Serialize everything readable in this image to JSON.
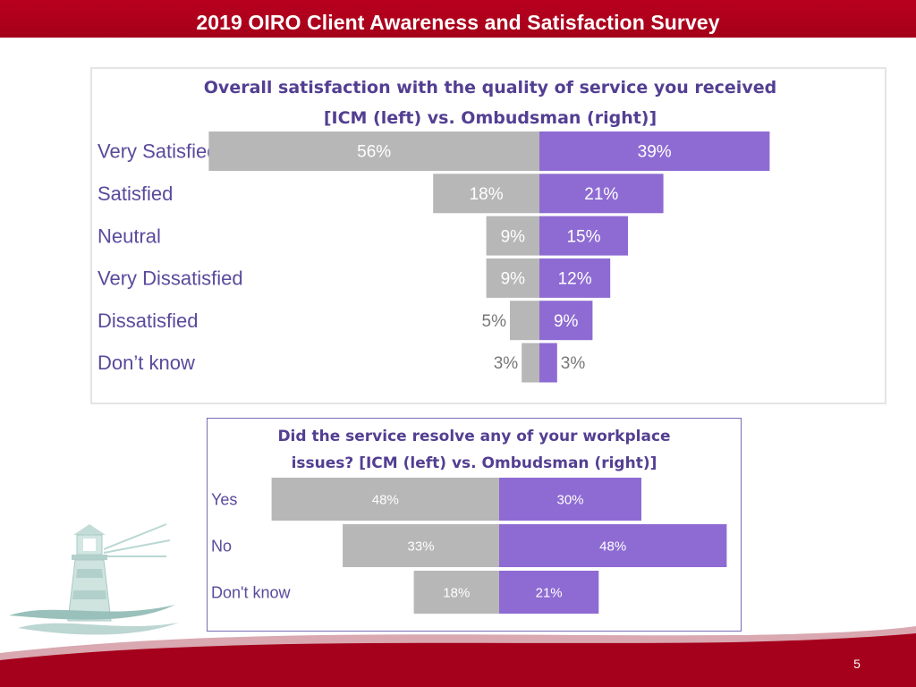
{
  "header": {
    "title": "2019 OIRO Client Awareness and Satisfaction Survey"
  },
  "footer": {
    "page_number": "5"
  },
  "colors": {
    "icm": "#b7b7b7",
    "ombudsman": "#8e6bd3",
    "title_bar": "#a50019",
    "chart_title": "#533f92"
  },
  "chart_data": [
    {
      "type": "bar",
      "orientation": "horizontal-diverging",
      "title_lines": [
        "Overall satisfaction with the quality of service you received",
        "[ICM (left) vs. Ombudsman (right)]"
      ],
      "categories": [
        "Very Satisfied",
        "Satisfied",
        "Neutral",
        "Very Dissatisfied",
        "Dissatisfied",
        "Don’t know"
      ],
      "series": [
        {
          "name": "ICM",
          "side": "left",
          "values": [
            56,
            18,
            9,
            9,
            5,
            3
          ],
          "labels": [
            "56%",
            "18%",
            "9%",
            "9%",
            "5%",
            "3%"
          ]
        },
        {
          "name": "Ombudsman",
          "side": "right",
          "values": [
            39,
            21,
            15,
            12,
            9,
            3
          ],
          "labels": [
            "39%",
            "21%",
            "15%",
            "12%",
            "9%",
            "3%"
          ]
        }
      ]
    },
    {
      "type": "bar",
      "orientation": "horizontal-diverging",
      "title_lines": [
        "Did the service resolve any of your workplace",
        "issues? [ICM (left) vs. Ombudsman (right)]"
      ],
      "categories": [
        "Yes",
        "No",
        "Don't know"
      ],
      "series": [
        {
          "name": "ICM",
          "side": "left",
          "values": [
            48,
            33,
            18
          ],
          "labels": [
            "48%",
            "33%",
            "18%"
          ]
        },
        {
          "name": "Ombudsman",
          "side": "right",
          "values": [
            30,
            48,
            21
          ],
          "labels": [
            "30%",
            "48%",
            "21%"
          ]
        }
      ]
    }
  ]
}
